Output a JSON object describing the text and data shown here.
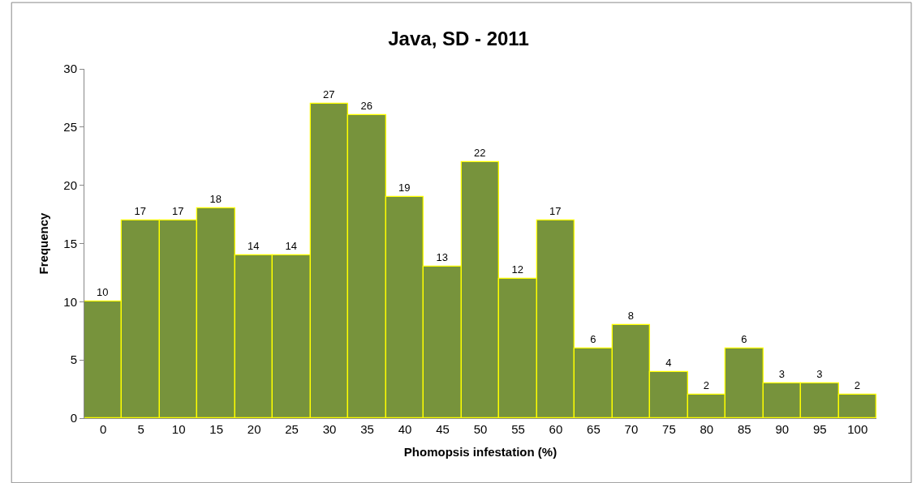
{
  "chart_data": {
    "type": "bar",
    "title": "Java, SD - 2011",
    "xlabel": "Phomopsis infestation (%)",
    "ylabel": "Frequency",
    "categories": [
      "0",
      "5",
      "10",
      "15",
      "20",
      "25",
      "30",
      "35",
      "40",
      "45",
      "50",
      "55",
      "60",
      "65",
      "70",
      "75",
      "80",
      "85",
      "90",
      "95",
      "100"
    ],
    "values": [
      10,
      17,
      17,
      18,
      14,
      14,
      27,
      26,
      19,
      13,
      22,
      12,
      17,
      6,
      8,
      4,
      2,
      6,
      3,
      3,
      2
    ],
    "color": "#77933c",
    "ylim": [
      0,
      30
    ],
    "yticks": [
      0,
      5,
      10,
      15,
      20,
      25,
      30
    ],
    "data_labels": true
  }
}
